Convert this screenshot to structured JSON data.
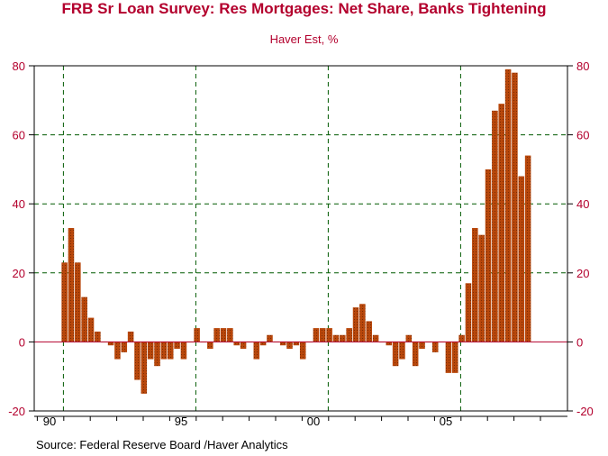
{
  "chart_data": {
    "type": "bar",
    "title": "FRB Sr Loan Survey: Res Mortgages: Net Share, Banks Tightening",
    "subtitle": "Haver Est, %",
    "source": "Source:  Federal Reserve Board /Haver Analytics",
    "ylim": [
      -20,
      80
    ],
    "y_ticks": [
      -20,
      0,
      20,
      40,
      60,
      80
    ],
    "x_ticks": [
      "90",
      "95",
      "00",
      "05"
    ],
    "grid": true,
    "frequency": "quarterly",
    "start": "1990 Q2",
    "values": [
      23,
      33,
      23,
      13,
      7,
      3,
      0,
      -1,
      -5,
      -3,
      3,
      -11,
      -15,
      -5,
      -7,
      -5,
      -5,
      -2,
      -5,
      0,
      4,
      0,
      -2,
      4,
      4,
      4,
      -1,
      -2,
      0,
      -5,
      -1,
      2,
      0,
      -1,
      -2,
      -1,
      -5,
      0,
      4,
      4,
      4,
      2,
      2,
      4,
      10,
      11,
      6,
      2,
      0,
      -1,
      -7,
      -5,
      2,
      -7,
      -2,
      0,
      -3,
      0,
      -9,
      -9,
      2,
      17,
      33,
      31,
      50,
      67,
      69,
      79,
      78,
      48,
      54
    ],
    "colors": {
      "bar": "#b8470b",
      "title": "#b3002d",
      "grid": "#005a00",
      "zero_line": "#b3002d"
    }
  }
}
